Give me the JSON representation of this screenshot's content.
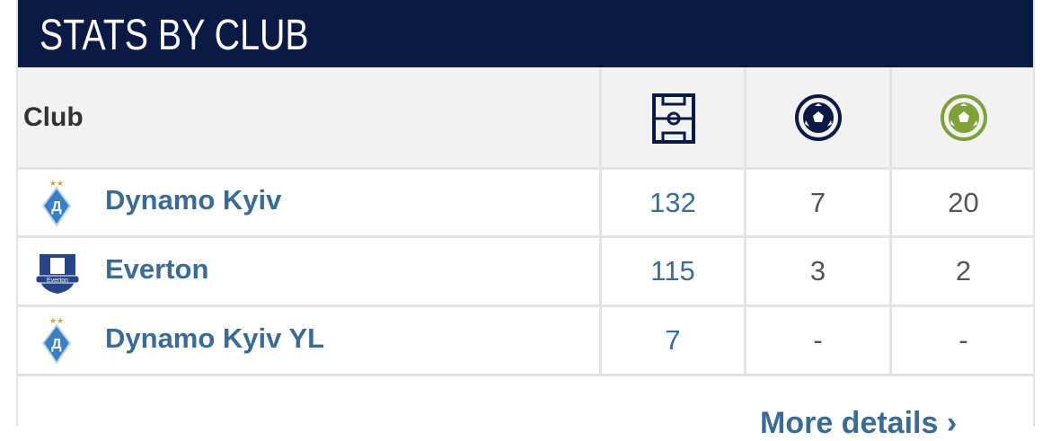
{
  "header": {
    "title": "STATS BY CLUB"
  },
  "table": {
    "columns": [
      "Club"
    ],
    "rows": [
      [
        "Dynamo Kyiv",
        132,
        7,
        20
      ],
      [
        "Everton",
        115,
        3,
        2
      ],
      [
        "Dynamo Kyiv YL",
        7,
        "-",
        "-"
      ]
    ]
  },
  "footer": {
    "link": "More details"
  }
}
